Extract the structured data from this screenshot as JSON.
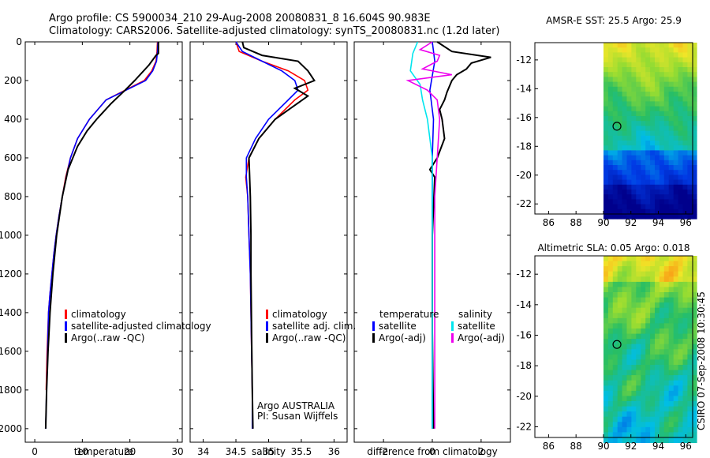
{
  "header": {
    "line1": "Argo profile: CS 5900034_210 29-Aug-2008 20080831_8 16.604S 90.983E",
    "line2": "Climatology: CARS2006. Satellite-adjusted climatology: synTS_20080831.nc (1.2d later)"
  },
  "side_text": "CSIRO 07-Sep-2008 10:30:45",
  "colors": {
    "climatology": "#ff0000",
    "satellite": "#0000ff",
    "argo": "#000000",
    "sat_salinity": "#00e5ee",
    "argo_adj_salinity": "#ee00ee"
  },
  "chart_data": [
    {
      "type": "line",
      "name": "temperature-panel",
      "xlabel": "temperature",
      "ylabel": "",
      "xlim": [
        -2,
        31
      ],
      "ylim": [
        2070,
        0
      ],
      "xticks": [
        0,
        10,
        20,
        30
      ],
      "yticks": [
        0,
        200,
        400,
        600,
        800,
        1000,
        1200,
        1400,
        1600,
        1800,
        2000
      ],
      "series": [
        {
          "name": "climatology",
          "color": "#ff0000",
          "x": [
            25.8,
            25.7,
            25.5,
            24.6,
            23,
            19,
            15,
            11.5,
            9,
            7.5,
            6.5,
            5.8,
            5.1,
            4.5,
            4,
            3.6,
            3.2,
            2.9,
            2.6,
            2.4
          ],
          "y": [
            0,
            50,
            100,
            150,
            200,
            250,
            300,
            400,
            500,
            600,
            700,
            800,
            900,
            1000,
            1100,
            1200,
            1300,
            1400,
            1600,
            1800
          ]
        },
        {
          "name": "satellite-adjusted climatology",
          "color": "#0000ff",
          "x": [
            25.9,
            25.8,
            25.6,
            24.8,
            23.3,
            19.2,
            15,
            11.5,
            9,
            7.5,
            6.6,
            5.8,
            5.1,
            4.5,
            4,
            3.6,
            3.2,
            2.9,
            2.7,
            2.5,
            2.3
          ],
          "y": [
            0,
            50,
            100,
            150,
            200,
            250,
            300,
            400,
            500,
            600,
            700,
            800,
            900,
            1000,
            1100,
            1200,
            1300,
            1400,
            1600,
            1800,
            2000
          ]
        },
        {
          "name": "Argo(..raw -QC)",
          "color": "#000000",
          "x": [
            26,
            26,
            26,
            25.5,
            24,
            21,
            19,
            16,
            13,
            11,
            9,
            8,
            7,
            5.8,
            4.6,
            3.8,
            3.2,
            2.8,
            2.5,
            2.3
          ],
          "y": [
            0,
            40,
            60,
            70,
            120,
            200,
            250,
            320,
            400,
            460,
            540,
            600,
            660,
            800,
            1000,
            1200,
            1400,
            1600,
            1800,
            2000
          ]
        }
      ],
      "legend": [
        "climatology",
        "satellite-adjusted climatology",
        "Argo(..raw -QC)"
      ]
    },
    {
      "type": "line",
      "name": "salinity-panel",
      "xlabel": "salinity",
      "xlim": [
        33.8,
        36.2
      ],
      "ylim": [
        2070,
        0
      ],
      "xticks": [
        34,
        34.5,
        35,
        35.5,
        36
      ],
      "series": [
        {
          "name": "climatology",
          "color": "#ff0000",
          "x": [
            34.5,
            34.55,
            34.9,
            35.3,
            35.55,
            35.6,
            35.4,
            35.1,
            34.85,
            34.7,
            34.65,
            34.68,
            34.7,
            34.72,
            34.73,
            34.74,
            34.75,
            34.75
          ],
          "y": [
            0,
            50,
            100,
            150,
            200,
            250,
            300,
            400,
            500,
            600,
            700,
            800,
            1000,
            1200,
            1400,
            1600,
            1800,
            2000
          ]
        },
        {
          "name": "satellite adj. clim.",
          "color": "#0000ff",
          "x": [
            34.5,
            34.6,
            34.9,
            35.2,
            35.4,
            35.45,
            35.3,
            35.0,
            34.8,
            34.66,
            34.66,
            34.68,
            34.7,
            34.72,
            34.73,
            34.74,
            34.75,
            34.75
          ],
          "y": [
            0,
            50,
            100,
            150,
            200,
            250,
            300,
            400,
            500,
            600,
            700,
            800,
            1000,
            1200,
            1400,
            1600,
            1800,
            2000
          ]
        },
        {
          "name": "Argo(..raw -QC)",
          "color": "#000000",
          "x": [
            34.6,
            34.62,
            34.9,
            35.45,
            35.6,
            35.7,
            35.4,
            35.6,
            35.35,
            35.1,
            34.85,
            34.7,
            34.72,
            34.73,
            34.73,
            34.74,
            34.75,
            34.76
          ],
          "y": [
            0,
            30,
            70,
            100,
            150,
            200,
            240,
            280,
            340,
            400,
            500,
            600,
            800,
            1000,
            1200,
            1500,
            1800,
            2000
          ]
        }
      ],
      "legend": [
        "climatology",
        "satellite adj. clim.",
        "Argo(..raw -QC)"
      ],
      "annotations": [
        "Argo AUSTRALIA",
        "PI: Susan Wijffels"
      ]
    },
    {
      "type": "line",
      "name": "difference-panel",
      "xlabel": "difference from climatology",
      "xlim": [
        -3.2,
        3.2
      ],
      "ylim": [
        2070,
        0
      ],
      "xticks": [
        -2,
        0,
        2
      ],
      "series": [
        {
          "name": "temperature satellite",
          "color": "#0000ff",
          "x": [
            0,
            0.1,
            -0.1,
            0.05,
            0,
            0,
            0,
            0
          ],
          "y": [
            0,
            100,
            250,
            400,
            600,
            1000,
            1500,
            2000
          ]
        },
        {
          "name": "temperature Argo(-adj)",
          "color": "#000000",
          "x": [
            0.2,
            0.8,
            2.4,
            1.6,
            1.4,
            1.0,
            0.8,
            0.6,
            0.5,
            0.3,
            0.4,
            0.5,
            0.2,
            -0.1,
            0.1,
            0,
            0,
            0.05
          ],
          "y": [
            0,
            50,
            80,
            110,
            140,
            170,
            200,
            260,
            300,
            350,
            400,
            500,
            600,
            660,
            700,
            1000,
            1500,
            2000
          ]
        },
        {
          "name": "salinity satellite",
          "color": "#00e5ee",
          "x": [
            -0.6,
            -0.8,
            -0.9,
            -0.5,
            -0.4,
            -0.2,
            0,
            0,
            0,
            0
          ],
          "y": [
            0,
            60,
            150,
            220,
            300,
            400,
            600,
            1000,
            1500,
            2000
          ]
        },
        {
          "name": "salinity Argo(-adj)",
          "color": "#ee00ee",
          "x": [
            0,
            -0.5,
            0.3,
            0.2,
            -0.4,
            0.8,
            -1.0,
            -0.2,
            0.2,
            0.3,
            0.2,
            0.1,
            0.1,
            0.1,
            0.1
          ],
          "y": [
            0,
            40,
            70,
            100,
            140,
            170,
            200,
            250,
            300,
            400,
            600,
            800,
            1200,
            1600,
            2000
          ]
        }
      ],
      "legend_groups": [
        {
          "heading": "temperature",
          "items": [
            "satellite",
            "Argo(-adj)"
          ]
        },
        {
          "heading": "salinity",
          "items": [
            "satellite",
            "Argo(-adj)"
          ]
        }
      ]
    },
    {
      "type": "heatmap",
      "name": "sst-map",
      "title": "AMSR-E SST: 25.5  Argo: 25.9",
      "xlim": [
        85,
        96.5
      ],
      "ylim": [
        -22.7,
        -10.8
      ],
      "xticks": [
        86,
        88,
        90,
        92,
        94,
        96
      ],
      "yticks": [
        -12,
        -14,
        -16,
        -18,
        -20,
        -22
      ],
      "data_from_lon": 90,
      "float_position": {
        "lon": 90.983,
        "lat": -16.604
      }
    },
    {
      "type": "heatmap",
      "name": "sla-map",
      "title": "Altimetric SLA: 0.05  Argo: 0.018",
      "xlim": [
        85,
        96.5
      ],
      "ylim": [
        -22.7,
        -10.8
      ],
      "xticks": [
        86,
        88,
        90,
        92,
        94,
        96
      ],
      "yticks": [
        -12,
        -14,
        -16,
        -18,
        -20,
        -22
      ],
      "data_from_lon": 90,
      "float_position": {
        "lon": 90.983,
        "lat": -16.604
      }
    }
  ]
}
